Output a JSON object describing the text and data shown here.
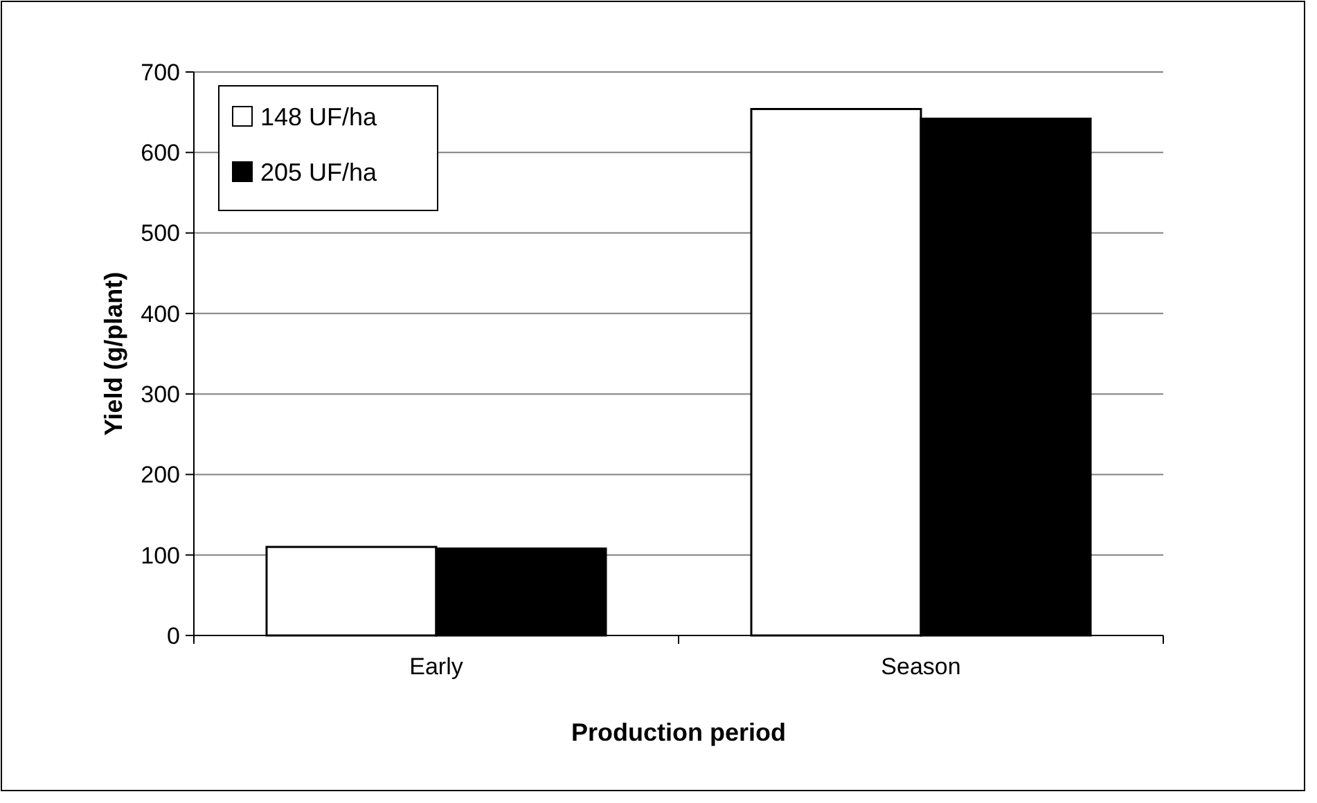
{
  "chart_data": {
    "type": "bar",
    "xlabel": "Production period",
    "ylabel": "Yield (g/plant)",
    "categories": [
      "Early",
      "Season"
    ],
    "series": [
      {
        "name": "148 UF/ha",
        "color": "#ffffff",
        "values": [
          110,
          654
        ]
      },
      {
        "name": "205 UF/ha",
        "color": "#000000",
        "values": [
          108,
          642
        ]
      }
    ],
    "ylim": [
      0,
      700
    ],
    "yticks": [
      0,
      100,
      200,
      300,
      400,
      500,
      600,
      700
    ],
    "grid": "y",
    "legend": "top left"
  }
}
